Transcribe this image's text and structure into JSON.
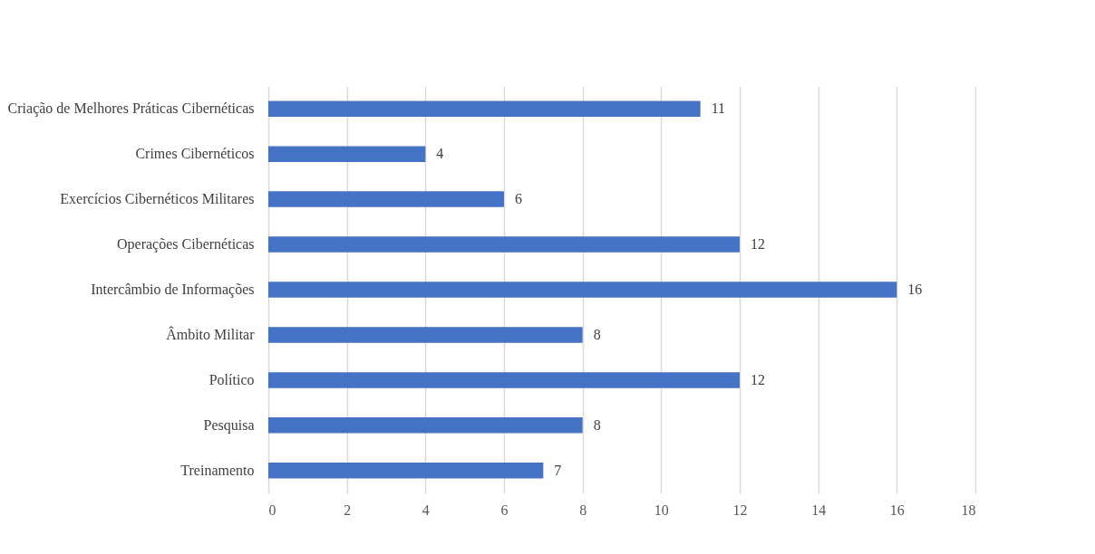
{
  "chart_data": {
    "type": "bar",
    "orientation": "horizontal",
    "categories": [
      "Criação de Melhores Práticas Cibernéticas",
      "Crimes Cibernéticos",
      "Exercícios Cibernéticos Militares",
      "Operações Cibernéticas",
      "Intercâmbio de Informações",
      "Âmbito Militar",
      "Político",
      "Pesquisa",
      "Treinamento"
    ],
    "values": [
      11,
      4,
      6,
      12,
      16,
      8,
      12,
      8,
      7
    ],
    "color": "#4472c4",
    "xlim": [
      0,
      18
    ],
    "xticks": [
      0,
      2,
      4,
      6,
      8,
      10,
      12,
      14,
      16,
      18
    ],
    "grid": "x",
    "data_labels": true
  }
}
